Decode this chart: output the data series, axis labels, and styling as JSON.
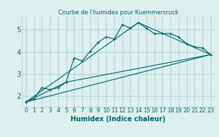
{
  "title": "Courbe de l'humidex pour Kuemmersruck",
  "xlabel": "Humidex (Indice chaleur)",
  "bg_color": "#ddf0ee",
  "grid_color": "#aacccc",
  "line_color": "#006666",
  "xlim": [
    -0.5,
    23.5
  ],
  "ylim": [
    1.5,
    5.6
  ],
  "xtick_labels": [
    "0",
    "1",
    "2",
    "3",
    "4",
    "5",
    "6",
    "7",
    "8",
    "9",
    "10",
    "11",
    "12",
    "13",
    "14",
    "15",
    "16",
    "17",
    "18",
    "19",
    "20",
    "21",
    "22",
    "23"
  ],
  "xtick_vals": [
    0,
    1,
    2,
    3,
    4,
    5,
    6,
    7,
    8,
    9,
    10,
    11,
    12,
    13,
    14,
    15,
    16,
    17,
    18,
    19,
    20,
    21,
    22,
    23
  ],
  "ytick_vals": [
    2,
    3,
    4,
    5
  ],
  "line1_x": [
    0,
    1,
    2,
    3,
    4,
    5,
    6,
    7,
    8,
    9,
    10,
    11,
    12,
    13,
    14,
    15,
    16,
    17,
    18,
    19,
    20,
    21,
    22,
    23
  ],
  "line1_y": [
    1.72,
    1.87,
    2.37,
    2.28,
    2.37,
    2.62,
    3.72,
    3.58,
    4.02,
    4.42,
    4.68,
    4.57,
    5.22,
    5.07,
    5.32,
    5.07,
    4.82,
    4.82,
    4.82,
    4.67,
    4.37,
    4.22,
    4.17,
    3.87
  ],
  "line2_x": [
    0,
    23
  ],
  "line2_y": [
    1.72,
    3.87
  ],
  "line3_x": [
    0,
    5,
    23
  ],
  "line3_y": [
    1.72,
    2.62,
    3.87
  ],
  "line4_x": [
    0,
    14,
    23
  ],
  "line4_y": [
    1.72,
    5.32,
    3.87
  ],
  "title_fontsize": 6,
  "xlabel_fontsize": 7,
  "tick_fontsize": 6
}
